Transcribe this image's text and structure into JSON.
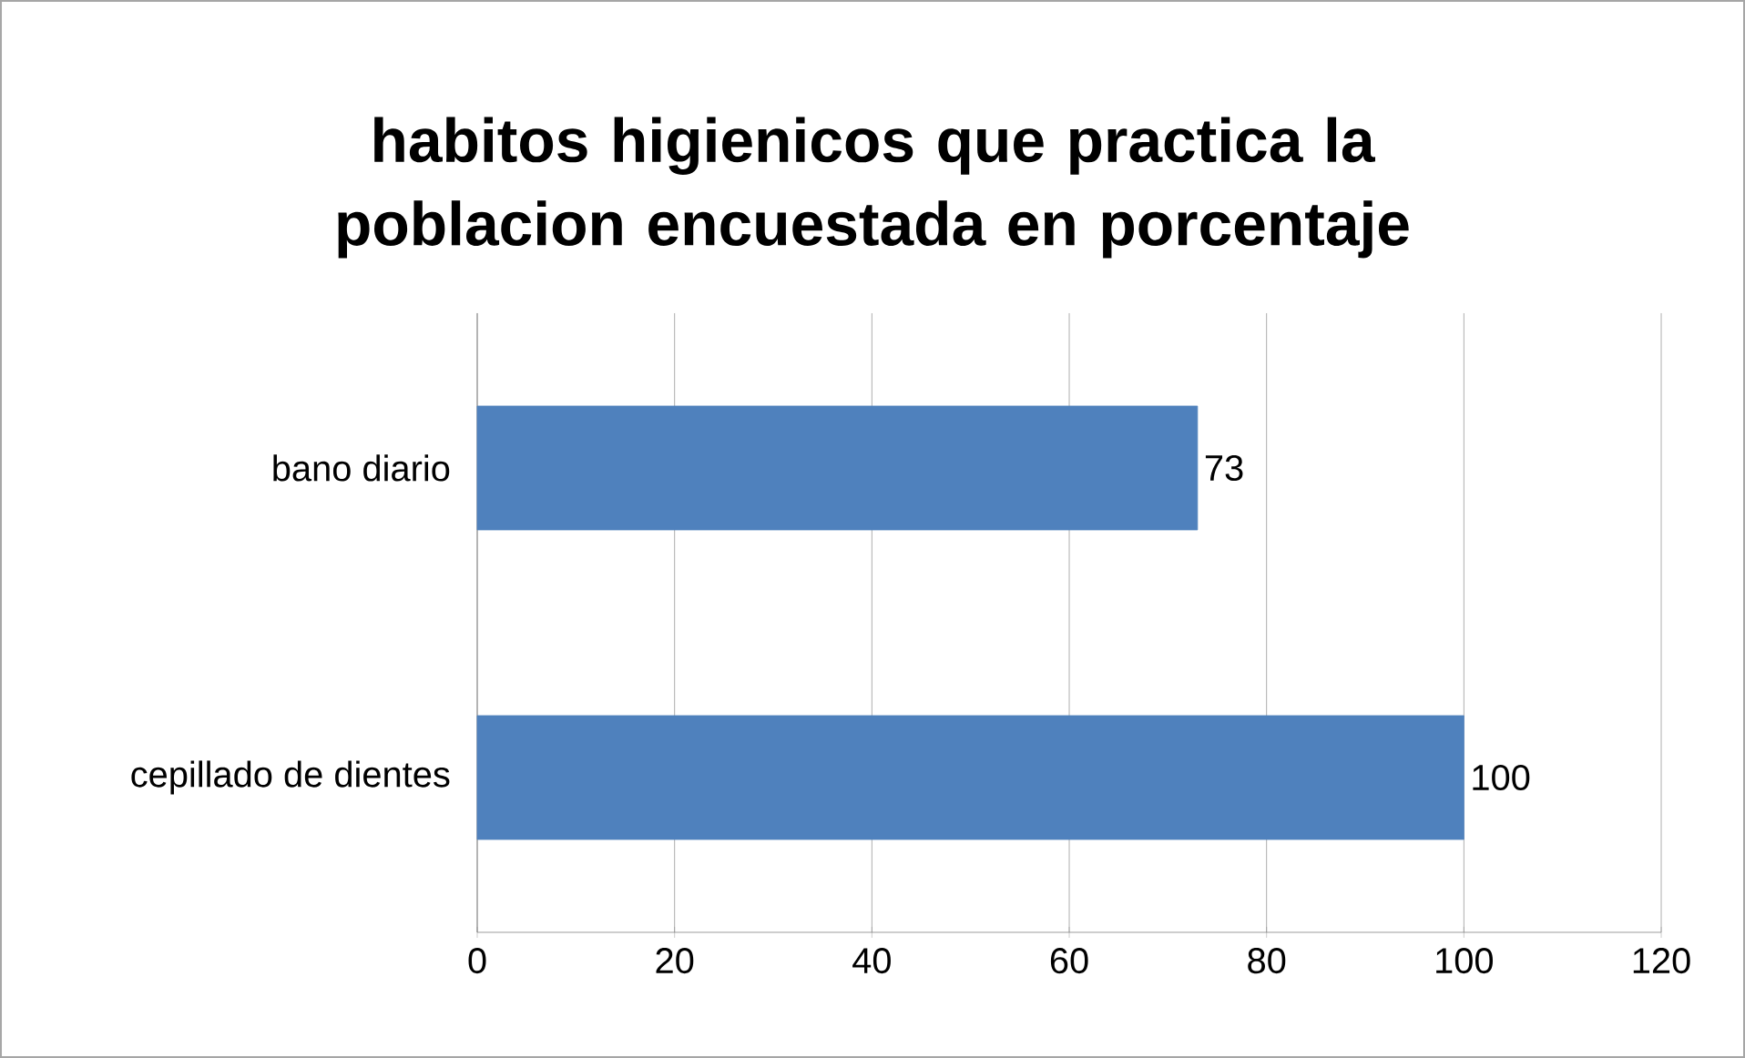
{
  "chart_data": {
    "type": "bar",
    "orientation": "horizontal",
    "title": "habitos higienicos que practica la poblacion encuestada en porcentaje",
    "categories": [
      "bano diario",
      "cepillado de dientes"
    ],
    "values": [
      73,
      100
    ],
    "color": "#4f81bd",
    "xlim": [
      0,
      120
    ],
    "xticks": [
      0,
      20,
      40,
      60,
      80,
      100,
      120
    ],
    "grid": "x",
    "data_labels": true
  }
}
